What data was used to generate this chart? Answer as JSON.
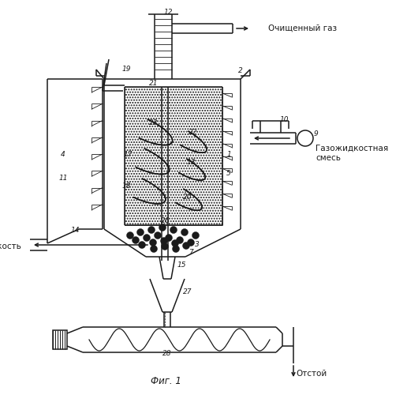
{
  "bg": "#ffffff",
  "lc": "#1a1a1a",
  "title": "Фиг. 1",
  "label_top": "Очищенный газ",
  "label_right1": "Газожидкостная",
  "label_right2": "смесь",
  "label_left": "Жидкость",
  "label_bottom": "Отстой"
}
